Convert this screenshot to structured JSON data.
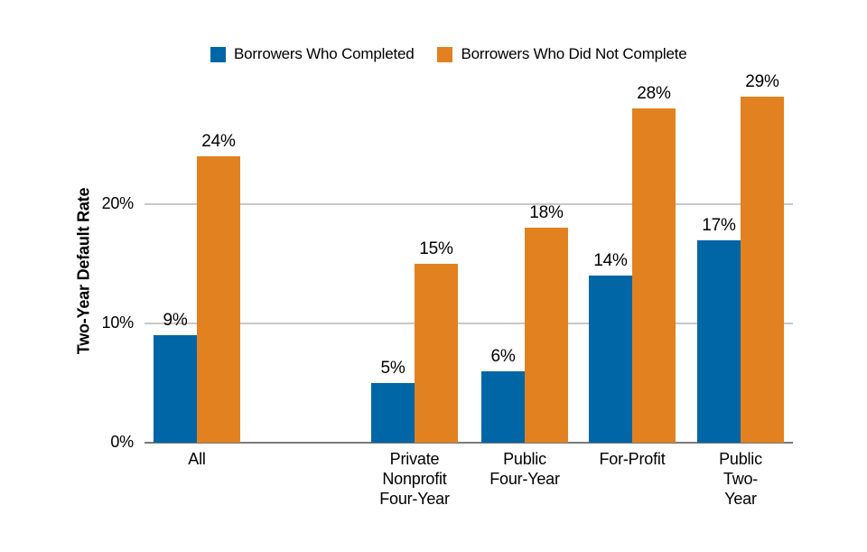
{
  "chart_data": {
    "type": "bar",
    "title": "",
    "ylabel": "Two-Year Default Rate",
    "categories": [
      "All",
      "Private Nonprofit Four-Year",
      "Public Four-Year",
      "For-Profit",
      "Public Two-Year"
    ],
    "category_label_lines": [
      [
        "All"
      ],
      [
        "Private",
        "Nonprofit",
        "Four-Year"
      ],
      [
        "Public",
        "Four-Year"
      ],
      [
        "For-Profit"
      ],
      [
        "Public",
        "Two-Year"
      ]
    ],
    "series": [
      {
        "name": "Borrowers Who Completed",
        "color": "#0066A6",
        "values": [
          9,
          5,
          6,
          14,
          17
        ]
      },
      {
        "name": "Borrowers Who Did Not Complete",
        "color": "#E28120",
        "values": [
          24,
          15,
          18,
          28,
          29
        ]
      }
    ],
    "value_labels": [
      [
        "9%",
        "5%",
        "6%",
        "14%",
        "17%"
      ],
      [
        "24%",
        "15%",
        "18%",
        "28%",
        "29%"
      ]
    ],
    "yticks": [
      0,
      10,
      20
    ],
    "ytick_labels": [
      "0%",
      "10%",
      "20%"
    ],
    "ylim": [
      0,
      30
    ],
    "grid": "horizontal",
    "grid_color": "#C9C9C9",
    "axis_line_color": "#7A7A7A",
    "legend_position": "top",
    "text_color": "#000000",
    "background_color": "#FFFFFF"
  }
}
